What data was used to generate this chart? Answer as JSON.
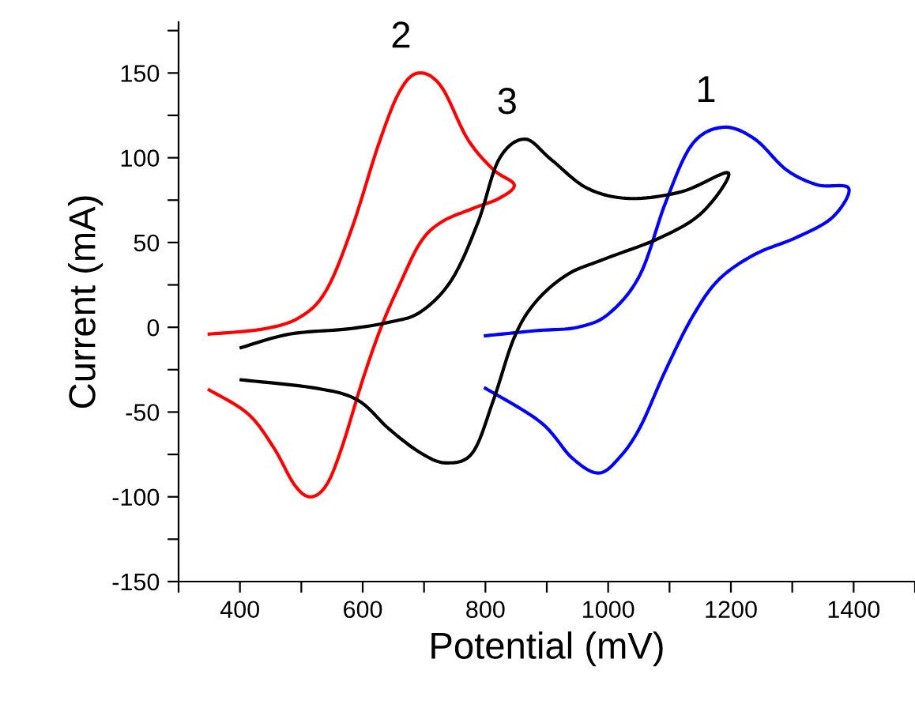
{
  "chart_data": {
    "type": "line",
    "xlabel": "Potential (mV)",
    "ylabel": "Current (mA)",
    "xlim": [
      300,
      1500
    ],
    "ylim": [
      -150,
      180
    ],
    "xticks": [
      {
        "value": 300,
        "label": null
      },
      400,
      {
        "value": 500,
        "label": null
      },
      600,
      {
        "value": 700,
        "label": null
      },
      800,
      {
        "value": 900,
        "label": null
      },
      1000,
      {
        "value": 1100,
        "label": null
      },
      1200,
      {
        "value": 1300,
        "label": null
      },
      1400,
      {
        "value": 1500,
        "label": null
      }
    ],
    "yticks": [
      -150,
      {
        "value": -125,
        "label": null
      },
      -100,
      {
        "value": -75,
        "label": null
      },
      -50,
      {
        "value": -25,
        "label": null
      },
      0,
      {
        "value": 25,
        "label": null
      },
      50,
      {
        "value": 75,
        "label": null
      },
      100,
      {
        "value": 125,
        "label": null
      },
      150,
      {
        "value": 175,
        "label": null
      }
    ],
    "grid": false,
    "marker": "none",
    "line_style": "solid",
    "series": [
      {
        "name": "1",
        "color": "#0000ff",
        "x": [
          800,
          882,
          950,
          1001,
          1052,
          1094,
          1137,
          1188,
          1239,
          1290,
          1341,
          1392,
          1366,
          1307,
          1239,
          1180,
          1137,
          1094,
          1052,
          1018,
          984,
          941,
          890,
          800
        ],
        "values": [
          -5,
          -2,
          0,
          8,
          31,
          74,
          108,
          118,
          111,
          93,
          84,
          82,
          65,
          53,
          43,
          28,
          6,
          -25,
          -59,
          -77,
          -86,
          -77,
          -56,
          -36
        ]
      },
      {
        "name": "2",
        "color": "#ff0000",
        "x": [
          350,
          438,
          498,
          541,
          583,
          626,
          660,
          691,
          728,
          771,
          813,
          847,
          822,
          779,
          728,
          694,
          660,
          630,
          600,
          566,
          541,
          515,
          489,
          455,
          413,
          350
        ],
        "values": [
          -4,
          -1,
          6,
          22,
          59,
          108,
          139,
          150,
          142,
          111,
          93,
          84,
          76,
          70,
          62,
          50,
          25,
          0,
          -31,
          -71,
          -93,
          -100,
          -93,
          -71,
          -51,
          -37
        ]
      },
      {
        "name": "3",
        "color": "#000000",
        "x": [
          402,
          481,
          575,
          643,
          694,
          745,
          788,
          822,
          864,
          907,
          966,
          1035,
          1120,
          1196,
          1154,
          1086,
          992,
          933,
          882,
          847,
          813,
          779,
          736,
          694,
          643,
          592,
          525,
          402
        ],
        "values": [
          -12,
          -4,
          -1,
          3,
          9,
          28,
          62,
          99,
          111,
          99,
          82,
          76,
          80,
          91,
          68,
          53,
          40,
          31,
          15,
          -6,
          -43,
          -74,
          -80,
          -74,
          -60,
          -43,
          -36,
          -31
        ]
      }
    ]
  }
}
